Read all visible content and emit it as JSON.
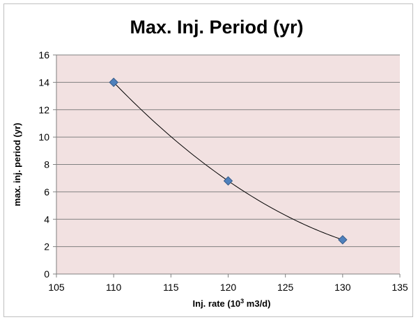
{
  "chart_data": {
    "type": "scatter",
    "title": "Max. Inj. Period (yr)",
    "xlabel": {
      "prefix": "Inj. rate (10",
      "sup": "3",
      "suffix": " m3/d)"
    },
    "ylabel": "max. inj. period (yr)",
    "xlim": [
      105,
      135
    ],
    "ylim": [
      0,
      16
    ],
    "xticks": [
      105,
      110,
      115,
      120,
      125,
      130,
      135
    ],
    "yticks": [
      0,
      2,
      4,
      6,
      8,
      10,
      12,
      14,
      16
    ],
    "grid": "horizontal",
    "series": [
      {
        "x": [
          110,
          120,
          130
        ],
        "y": [
          14.0,
          6.8,
          2.5
        ],
        "marker": "diamond",
        "color": "#4f81bd",
        "trendline": true
      }
    ],
    "colors": {
      "plot_background": "#f2e1e1",
      "gridline": "#808080",
      "trendline": "#000000",
      "marker_edge": "#385d8a"
    }
  }
}
